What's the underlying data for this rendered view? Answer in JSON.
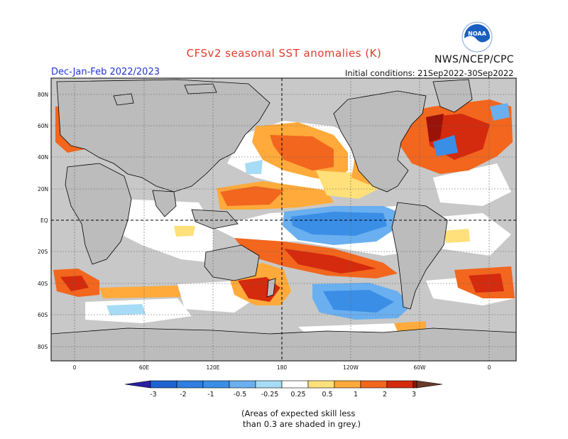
{
  "header": {
    "title": "CFSv2 seasonal SST anomalies (K)",
    "org": "NWS/NCEP/CPC",
    "season": "Dec-Jan-Feb 2022/2023",
    "initial_conditions": "Initial conditions: 21Sep2022-30Sep2022",
    "logo_text": "NOAA"
  },
  "map": {
    "lat_labels": [
      "80N",
      "60N",
      "40N",
      "20N",
      "EQ",
      "20S",
      "40S",
      "60S",
      "80S"
    ],
    "lon_labels": [
      "0",
      "60E",
      "120E",
      "180",
      "120W",
      "60W",
      "0"
    ],
    "colors": {
      "land": "#bcbcbc",
      "ocean_low_skill": "#c8c8c8",
      "ocean_neutral": "#ffffff",
      "coast": "#000000",
      "gridline": "#666666"
    }
  },
  "colorbar": {
    "labels": [
      "-3",
      "-2",
      "-1",
      "-0.5",
      "-0.25",
      "0.25",
      "0.5",
      "1",
      "2",
      "3"
    ],
    "colors": [
      "#2a1fa0",
      "#1e62d0",
      "#3a8ee6",
      "#6aafef",
      "#a6dcf5",
      "#ffffff",
      "#ffe07a",
      "#ffaa3a",
      "#f2661e",
      "#d42a0e",
      "#9a1208",
      "#6a3a2a"
    ]
  },
  "footnote": {
    "line1": "(Areas of expected skill less",
    "line2": "than 0.3 are shaded in grey.)"
  }
}
